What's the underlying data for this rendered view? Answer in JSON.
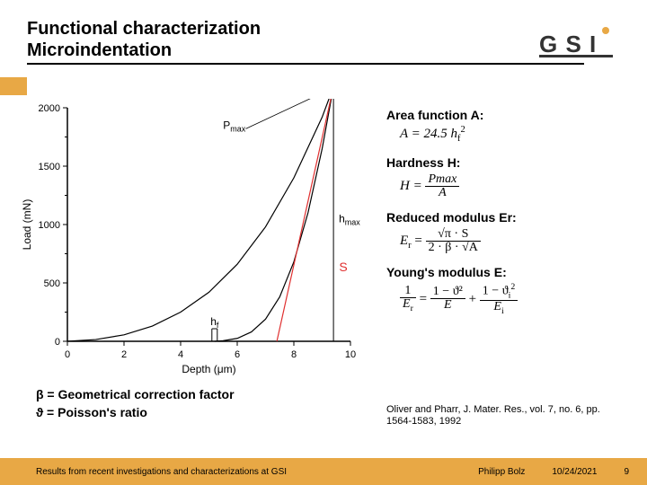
{
  "title_line1": "Functional characterization",
  "title_line2": "Microindentation",
  "logo": {
    "text": "GSI",
    "color_orange": "#e8a845",
    "color_dark": "#333333"
  },
  "chart": {
    "type": "line",
    "xlabel": "Depth (μm)",
    "ylabel": "Load (mN)",
    "xlim": [
      0,
      10
    ],
    "ylim": [
      0,
      2000
    ],
    "xticks": [
      0,
      2,
      4,
      6,
      8,
      10
    ],
    "yticks": [
      0,
      500,
      1000,
      1500,
      2000
    ],
    "minor_yticks": [
      250,
      750,
      1250,
      1750
    ],
    "axis_fontsize": 12,
    "tick_fontsize": 11,
    "line_color": "#000000",
    "tangent_color": "#e03030",
    "annotation_color_black": "#000000",
    "annotation_color_red": "#e03030",
    "loading_curve": [
      [
        0,
        0
      ],
      [
        1,
        15
      ],
      [
        2,
        55
      ],
      [
        3,
        130
      ],
      [
        4,
        250
      ],
      [
        5,
        420
      ],
      [
        6,
        660
      ],
      [
        7,
        980
      ],
      [
        8,
        1400
      ],
      [
        9,
        1920
      ],
      [
        9.4,
        2180
      ]
    ],
    "unloading_curve": [
      [
        9.4,
        2180
      ],
      [
        9.0,
        1650
      ],
      [
        8.5,
        1100
      ],
      [
        8.0,
        680
      ],
      [
        7.5,
        380
      ],
      [
        7.0,
        190
      ],
      [
        6.5,
        80
      ],
      [
        6.0,
        25
      ],
      [
        5.5,
        5
      ],
      [
        5.2,
        0
      ]
    ],
    "tangent_line": [
      [
        7.4,
        0
      ],
      [
        9.4,
        2180
      ]
    ],
    "pmax_line_x": 9.4,
    "pmax_line_ytop": 2180,
    "hmax_marker_x": 9.4,
    "hmax_marker_y": 1020,
    "hf_marker_x": 5.2,
    "pmax_label": "Pmax",
    "hmax_label": "hmax",
    "hf_label": "hf",
    "s_label": "S"
  },
  "formulas": {
    "area_label": "Area function A:",
    "area_expr_lhs": "A = 24.5 ",
    "area_expr_var": "h",
    "area_expr_sub": "f",
    "area_expr_sup": "2",
    "hardness_label": "Hardness H:",
    "hardness_num": "Pmax",
    "hardness_den": "A",
    "hardness_lhs": "H = ",
    "reduced_label": "Reduced modulus Er:",
    "reduced_lhs": "E",
    "reduced_lhs_sub": "r",
    "reduced_eq": " = ",
    "reduced_num": "√π · S",
    "reduced_den": "2 · β · √A",
    "young_label": "Young's modulus E:",
    "young_lhs_num": "1",
    "young_lhs_den_base": "E",
    "young_lhs_den_sub": "r",
    "young_t1_num": "1 − ϑ²",
    "young_t1_den": "E",
    "young_t2_num_pre": "1 − ϑ",
    "young_t2_num_sub": "i",
    "young_t2_num_sup": "2",
    "young_t2_den_base": "E",
    "young_t2_den_sub": "i"
  },
  "definitions": {
    "line1": "β = Geometrical correction factor",
    "line2": "ϑ = Poisson's ratio"
  },
  "citation": "Oliver and Pharr, J. Mater. Res., vol. 7, no. 6, pp. 1564-1583, 1992",
  "footer": {
    "left": "Results from recent investigations and characterizations at GSI",
    "center": "Philipp Bolz",
    "date": "10/24/2021",
    "page": "9"
  }
}
